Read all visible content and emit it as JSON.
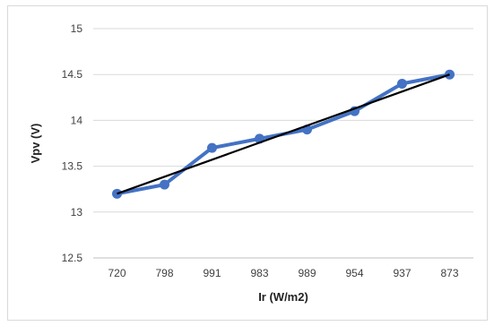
{
  "chart_data": {
    "type": "line",
    "title": "",
    "xlabel": "Ir (W/m2)",
    "ylabel": "Vpv (V)",
    "categories": [
      "720",
      "798",
      "991",
      "983",
      "989",
      "954",
      "937",
      "873"
    ],
    "series": [
      {
        "values": [
          13.2,
          13.3,
          13.7,
          13.8,
          13.9,
          14.1,
          14.4,
          14.5
        ],
        "color": "#4472C4"
      }
    ],
    "trendline": {
      "type": "linear",
      "start": 13.2,
      "end": 14.5,
      "color": "#000000"
    },
    "ylim": [
      12.5,
      15
    ],
    "yticks": [
      "12.5",
      "13",
      "13.5",
      "14",
      "14.5",
      "15"
    ],
    "grid": true,
    "legend": "none"
  }
}
